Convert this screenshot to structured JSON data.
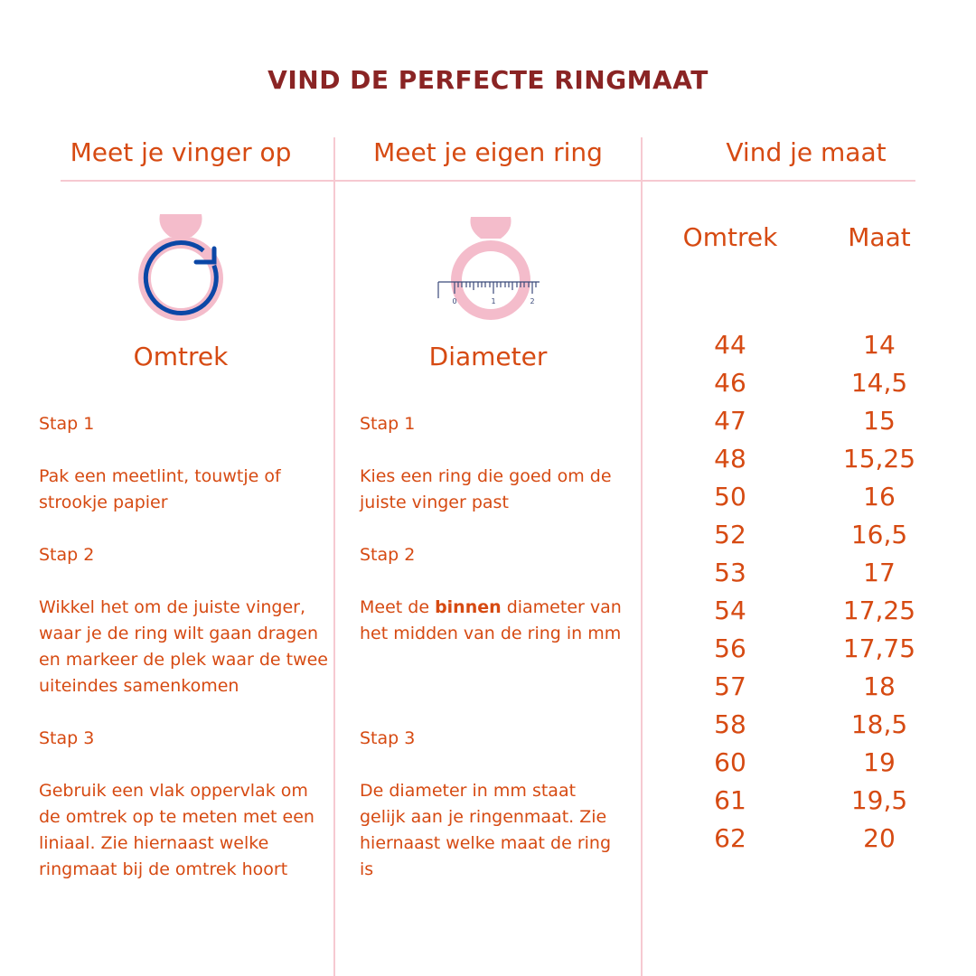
{
  "title": "VIND DE PERFECTE RINGMAAT",
  "colors": {
    "title": "#8a2424",
    "text": "#d64a12",
    "divider": "#f6c9d1",
    "ring": "#f4bccb",
    "arrow": "#0b47a6"
  },
  "columns": [
    {
      "header": "Meet je vinger op",
      "icon": "ring-circumference-icon",
      "subtitle": "Omtrek",
      "steps": [
        {
          "label": "Stap 1",
          "text": "Pak een meetlint, touwtje of strookje papier"
        },
        {
          "label": "Stap 2",
          "text": "Wikkel het om de juiste vinger, waar je de ring wilt gaan dragen en markeer de plek waar de twee uiteindes samenkomen"
        },
        {
          "label": "Stap 3",
          "text": "Gebruik een vlak oppervlak om de omtrek op te meten met een liniaal. Zie hiernaast welke ringmaat bij de omtrek hoort"
        }
      ]
    },
    {
      "header": "Meet je eigen ring",
      "icon": "ring-ruler-icon",
      "subtitle": "Diameter",
      "ruler_labels": [
        "0",
        "1",
        "2"
      ],
      "steps": [
        {
          "label": "Stap 1",
          "text": "Kies een ring die goed om de juiste vinger past"
        },
        {
          "label": "Stap 2",
          "text_before": "Meet de ",
          "text_bold": "binnen",
          "text_after": " diameter van het midden van de ring in mm"
        },
        {
          "label": "Stap 3",
          "text": "De diameter in mm staat gelijk aan je ringenmaat. Zie hiernaast welke maat de ring is"
        }
      ]
    },
    {
      "header": "Vind je maat"
    }
  ],
  "table": {
    "headers": [
      "Omtrek",
      "Maat"
    ],
    "omtrek": [
      "44",
      "46",
      "47",
      "48",
      "50",
      "52",
      "53",
      "54",
      "56",
      "57",
      "58",
      "60",
      "61",
      "62"
    ],
    "maat": [
      "14",
      "14,5",
      "15",
      "15,25",
      "16",
      "16,5",
      "17",
      "17,25",
      "17,75",
      "18",
      "18,5",
      "19",
      "19,5",
      "20"
    ]
  }
}
